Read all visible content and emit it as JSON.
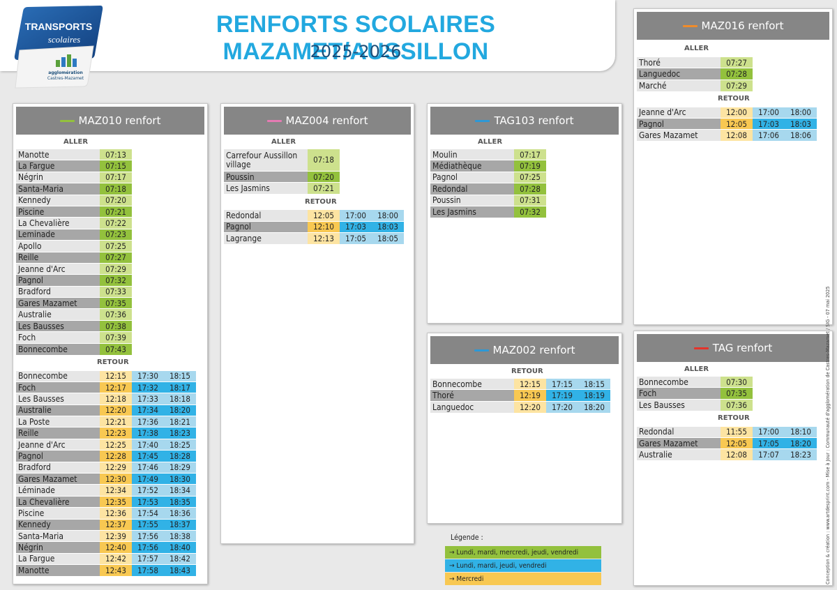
{
  "header": {
    "title": "RENFORTS SCOLAIRES MAZAMET/AUSSILLON",
    "subtitle": "2025-2026"
  },
  "logo": {
    "line1": "TRANSPORTS",
    "line2": "scolaires",
    "line3": "agglomération",
    "line4": "Castres-Mazamet"
  },
  "colors": {
    "green": "#93c13d",
    "pink": "#e57bb3",
    "blue": "#2d98d6",
    "orange": "#f08c2a",
    "red": "#e5332a"
  },
  "legend": {
    "title": "Légende :",
    "items": [
      "→ Lundi, mardi, mercredi, jeudi, vendredi",
      "→ Lundi, mardi, jeudi, vendredi",
      "→ Mercredi"
    ]
  },
  "credit": "Conception & création : www.artdesprint.com  -  Mise à Jour : Communauté d'agglomération de Castres-Mazamet / SIG - 07 mai 2025",
  "labels": {
    "aller": "ALLER",
    "retour": "RETOUR"
  },
  "panels": [
    {
      "id": "maz010",
      "title": "MAZ010 renfort",
      "color": "#93c13d",
      "aller": [
        [
          "Manotte",
          "07:13"
        ],
        [
          "La Fargue",
          "07:15"
        ],
        [
          "Négrin",
          "07:17"
        ],
        [
          "Santa-Maria",
          "07:18"
        ],
        [
          "Kennedy",
          "07:20"
        ],
        [
          "Piscine",
          "07:21"
        ],
        [
          "La Chevalière",
          "07:22"
        ],
        [
          "Leminade",
          "07:23"
        ],
        [
          "Apollo",
          "07:25"
        ],
        [
          "Reille",
          "07:27"
        ],
        [
          "Jeanne d'Arc",
          "07:29"
        ],
        [
          "Pagnol",
          "07:32"
        ],
        [
          "Bradford",
          "07:33"
        ],
        [
          "Gares Mazamet",
          "07:35"
        ],
        [
          "Australie",
          "07:36"
        ],
        [
          "Les Bausses",
          "07:38"
        ],
        [
          "Foch",
          "07:39"
        ],
        [
          "Bonnecombe",
          "07:43"
        ]
      ],
      "retour": [
        [
          "Bonnecombe",
          "12:15",
          "17:30",
          "18:15"
        ],
        [
          "Foch",
          "12:17",
          "17:32",
          "18:17"
        ],
        [
          "Les Bausses",
          "12:18",
          "17:33",
          "18:18"
        ],
        [
          "Australie",
          "12:20",
          "17:34",
          "18:20"
        ],
        [
          "La Poste",
          "12:21",
          "17:36",
          "18:21"
        ],
        [
          "Reille",
          "12:23",
          "17:38",
          "18:23"
        ],
        [
          "Jeanne d'Arc",
          "12:25",
          "17:40",
          "18:25"
        ],
        [
          "Pagnol",
          "12:28",
          "17:45",
          "18:28"
        ],
        [
          "Bradford",
          "12:29",
          "17:46",
          "18:29"
        ],
        [
          "Gares Mazamet",
          "12:30",
          "17:49",
          "18:30"
        ],
        [
          "Léminade",
          "12:34",
          "17:52",
          "18:34"
        ],
        [
          "La Chevalière",
          "12:35",
          "17:53",
          "18:35"
        ],
        [
          "Piscine",
          "12:36",
          "17:54",
          "18:36"
        ],
        [
          "Kennedy",
          "12:37",
          "17:55",
          "18:37"
        ],
        [
          "Santa-Maria",
          "12:39",
          "17:56",
          "18:38"
        ],
        [
          "Négrin",
          "12:40",
          "17:56",
          "18:40"
        ],
        [
          "La Fargue",
          "12:42",
          "17:57",
          "18:42"
        ],
        [
          "Manotte",
          "12:43",
          "17:58",
          "18:43"
        ]
      ]
    },
    {
      "id": "maz004",
      "title": "MAZ004 renfort",
      "color": "#e57bb3",
      "aller": [
        [
          "Carrefour Aussillon village",
          "07:18"
        ],
        [
          "Poussin",
          "07:20"
        ],
        [
          "Les Jasmins",
          "07:21"
        ]
      ],
      "retour": [
        [
          "Redondal",
          "12:05",
          "17:00",
          "18:00"
        ],
        [
          "Pagnol",
          "12:10",
          "17:03",
          "18:03"
        ],
        [
          "Lagrange",
          "12:13",
          "17:05",
          "18:05"
        ]
      ]
    },
    {
      "id": "tag103",
      "title": "TAG103 renfort",
      "color": "#2d98d6",
      "aller": [
        [
          "Moulin",
          "07:17"
        ],
        [
          "Médiathèque",
          "07:19"
        ],
        [
          "Pagnol",
          "07:25"
        ],
        [
          "Redondal",
          "07:28"
        ],
        [
          "Poussin",
          "07:31"
        ],
        [
          "Les Jasmins",
          "07:32"
        ]
      ],
      "retour": []
    },
    {
      "id": "maz002",
      "title": "MAZ002 renfort",
      "color": "#2d98d6",
      "aller": [],
      "retour": [
        [
          "Bonnecombe",
          "12:15",
          "17:15",
          "18:15"
        ],
        [
          "Thoré",
          "12:19",
          "17:19",
          "18:19"
        ],
        [
          "Languedoc",
          "12:20",
          "17:20",
          "18:20"
        ]
      ]
    },
    {
      "id": "maz016",
      "title": "MAZ016 renfort",
      "color": "#f08c2a",
      "aller": [
        [
          "Thoré",
          "07:27"
        ],
        [
          "Languedoc",
          "07:28"
        ],
        [
          "Marché",
          "07:29"
        ]
      ],
      "retour": [
        [
          "Jeanne d'Arc",
          "12:00",
          "17:00",
          "18:00"
        ],
        [
          "Pagnol",
          "12:05",
          "17:03",
          "18:03"
        ],
        [
          "Gares Mazamet",
          "12:08",
          "17:06",
          "18:06"
        ]
      ]
    },
    {
      "id": "tag",
      "title": "TAG renfort",
      "color": "#e5332a",
      "aller": [
        [
          "Bonnecombe",
          "07:30"
        ],
        [
          "Foch",
          "07:35"
        ],
        [
          "Les Bausses",
          "07:36"
        ]
      ],
      "retour": [
        [
          "Redondal",
          "11:55",
          "17:00",
          "18:10"
        ],
        [
          "Gares Mazamet",
          "12:05",
          "17:05",
          "18:20"
        ],
        [
          "Australie",
          "12:08",
          "17:07",
          "18:23"
        ]
      ]
    }
  ]
}
